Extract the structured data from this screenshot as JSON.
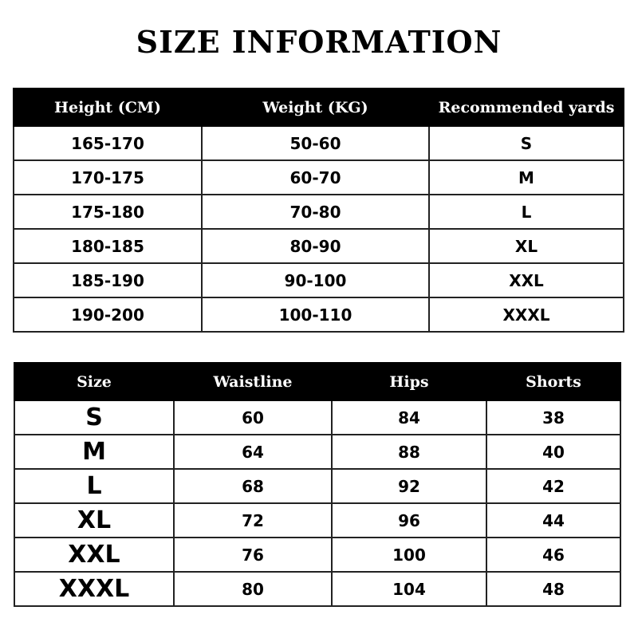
{
  "title": "SIZE INFORMATION",
  "table1": {
    "headers": [
      "Height (CM)",
      "Weight (KG)",
      "Recommended yards"
    ],
    "rows": [
      [
        "165-170",
        "50-60",
        "S"
      ],
      [
        "170-175",
        "60-70",
        "M"
      ],
      [
        "175-180",
        "70-80",
        "L"
      ],
      [
        "180-185",
        "80-90",
        "XL"
      ],
      [
        "185-190",
        "90-100",
        "XXL"
      ],
      [
        "190-200",
        "100-110",
        "XXXL"
      ]
    ]
  },
  "table2": {
    "headers": [
      "Size",
      "Waistline",
      "Hips",
      "Shorts"
    ],
    "rows": [
      [
        "S",
        "60",
        "84",
        "38"
      ],
      [
        "M",
        "64",
        "88",
        "40"
      ],
      [
        "L",
        "68",
        "92",
        "42"
      ],
      [
        "XL",
        "72",
        "96",
        "44"
      ],
      [
        "XXL",
        "76",
        "100",
        "46"
      ],
      [
        "XXXL",
        "80",
        "104",
        "48"
      ]
    ]
  }
}
